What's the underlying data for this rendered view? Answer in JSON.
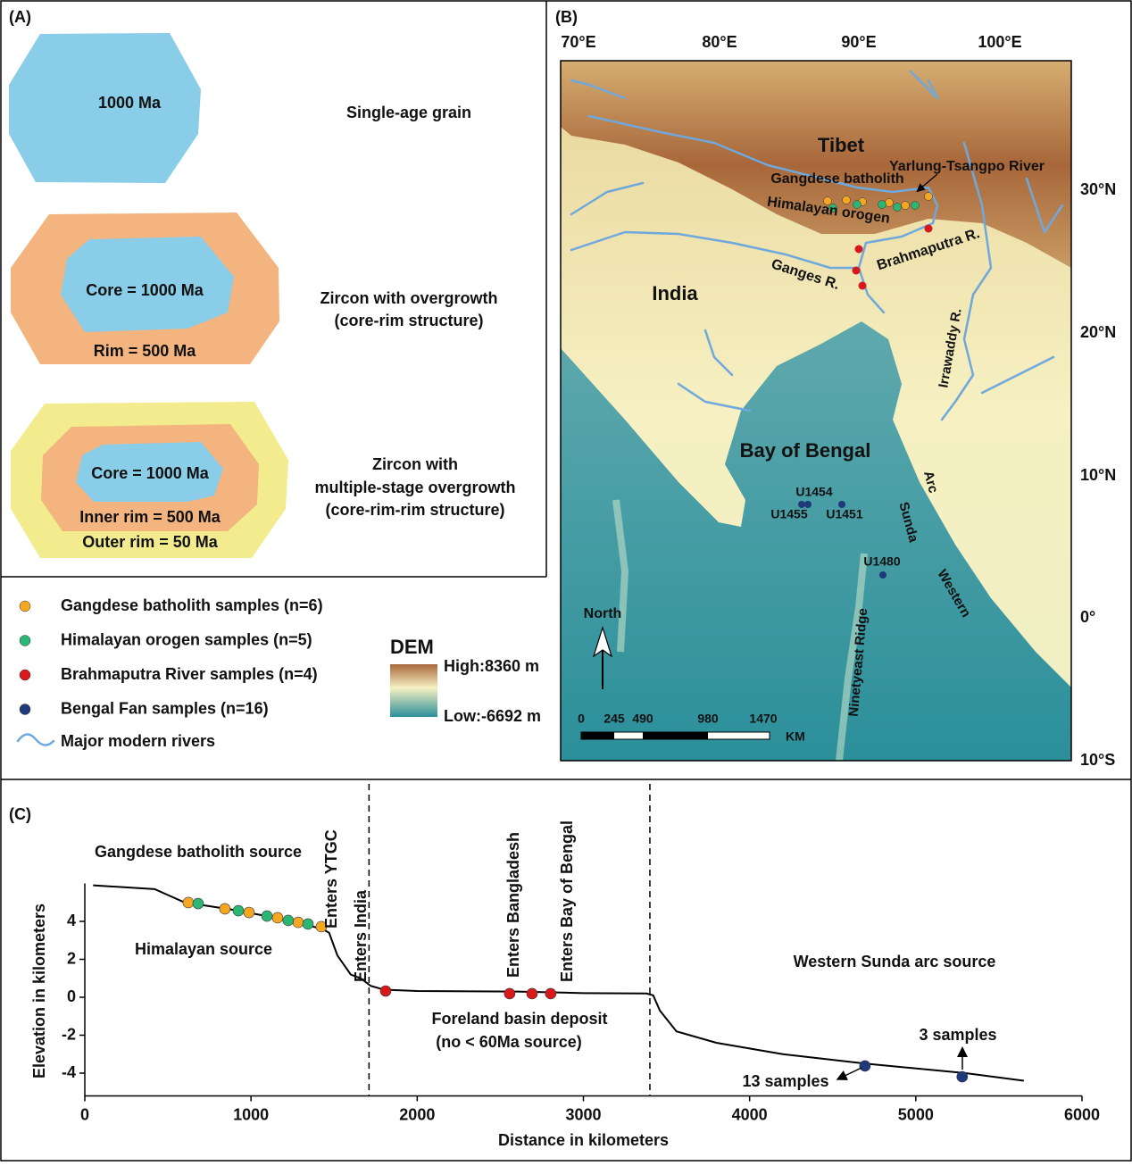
{
  "panel_a": {
    "label": "(A)",
    "grain_1": {
      "core": "1000 Ma",
      "caption": [
        "Single-age grain"
      ]
    },
    "grain_2": {
      "core": "Core = 1000 Ma",
      "rim": "Rim = 500 Ma",
      "caption": [
        "Zircon with overgrowth",
        "(core-rim structure)"
      ]
    },
    "grain_3": {
      "core": "Core = 1000 Ma",
      "inner_rim": "Inner rim = 500 Ma",
      "outer_rim": "Outer rim = 50 Ma",
      "caption": [
        "Zircon with",
        "multiple-stage overgrowth",
        "(core-rim-rim structure)"
      ]
    }
  },
  "panel_b": {
    "label": "(B)",
    "lon_labels": [
      "70°E",
      "80°E",
      "90°E",
      "100°E"
    ],
    "lat_labels": [
      "30°N",
      "20°N",
      "10°N",
      "0°",
      "10°S"
    ],
    "places": [
      "Tibet",
      "Gangdese batholith",
      "Yarlung-Tsangpo River",
      "Himalayan orogen",
      "Brahmaputra R.",
      "Ganges R.",
      "India",
      "Irrawaddy R.",
      "Bay of Bengal",
      "U1454",
      "U1455",
      "U1451",
      "U1480",
      "Arc",
      "Sunda",
      "Western",
      "Ninetyeast Ridge"
    ],
    "north": "North",
    "scale": [
      "0",
      "245",
      "490",
      "980",
      "1470",
      "KM"
    ]
  },
  "legend": {
    "rivers": "Major modern rivers",
    "dem_title": "DEM",
    "dem_high": "High:8360 m",
    "dem_low": "Low:-6692 m"
  },
  "chart_data": {
    "type": "line",
    "label": "(C)",
    "x_label": "Distance in kilometers",
    "y_label": "Elevation in kilometers",
    "xlim": [
      0,
      6000
    ],
    "ylim": [
      -5.2,
      6
    ],
    "xticks": [
      0,
      1000,
      2000,
      3000,
      4000,
      5000,
      6000
    ],
    "yticks": [
      -4,
      -2,
      0,
      2,
      4
    ],
    "dividers": [
      1710,
      3400
    ],
    "series": [
      {
        "color": "#000000",
        "x": [
          50,
          420,
          600,
          900,
          1200,
          1430,
          1470,
          1520,
          1600,
          1660,
          1720,
          1800,
          2000,
          2600,
          3000,
          3380,
          3420,
          3460,
          3560,
          3800,
          4200,
          4700,
          5300,
          5650
        ],
        "values": [
          5.9,
          5.7,
          5.0,
          4.6,
          4.1,
          3.6,
          3.4,
          2.2,
          1.2,
          1.0,
          0.6,
          0.4,
          0.33,
          0.3,
          0.22,
          0.2,
          0.1,
          -0.7,
          -1.8,
          -2.4,
          -3.0,
          -3.5,
          -4.0,
          -4.4
        ]
      },
      {
        "name": "Gangdese batholith samples (n=6)",
        "color": "#f5a623",
        "x": [
          623,
          843,
          988,
          1160,
          1284,
          1423
        ],
        "values": [
          4.99,
          4.66,
          4.47,
          4.19,
          3.95,
          3.72
        ]
      },
      {
        "name": "Himalayan orogen samples (n=5)",
        "color": "#2bb673",
        "x": [
          682,
          924,
          1096,
          1224,
          1343
        ],
        "values": [
          4.94,
          4.56,
          4.28,
          4.05,
          3.86
        ]
      },
      {
        "name": "Brahmaputra River samples (n=4)",
        "color": "#d7191c",
        "x": [
          1810,
          2556,
          2691,
          2803
        ],
        "values": [
          0.33,
          0.19,
          0.19,
          0.19
        ]
      },
      {
        "name": "Bengal Fan samples (n=16)",
        "color": "#1f3a7a",
        "x": [
          4694,
          5279
        ],
        "values": [
          -3.62,
          -4.19
        ]
      }
    ],
    "annotations": [
      "Gangdese batholith source",
      "Himalayan source",
      "Enters YTGC",
      "Enters India",
      "Enters Bangladesh",
      "Enters Bay of Bengal",
      "Foreland basin deposit",
      "(no < 60Ma source)",
      "Western Sunda arc source",
      "3 samples",
      "13 samples"
    ]
  }
}
